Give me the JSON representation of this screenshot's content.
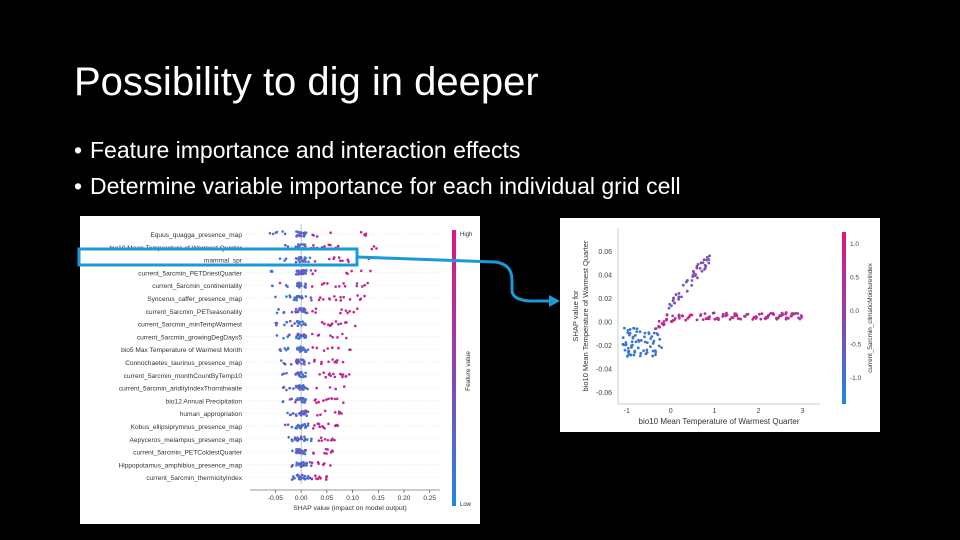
{
  "slide": {
    "title": "Possibility to dig in deeper",
    "bullets": [
      "Feature importance and interaction effects",
      "Determine variable importance for each individual grid cell"
    ]
  },
  "colors": {
    "background": "#000000",
    "text": "#ffffff",
    "highlight": "#1a9ad6",
    "low": "#1e88e5",
    "high": "#e0157f"
  },
  "chart_data": [
    {
      "type": "scatter",
      "subtype": "shap-summary-beeswarm",
      "features": [
        "Equus_quagga_presence_map",
        "bio10 Mean Temperature of Warmest Quarter",
        "mammal_spr",
        "current_5arcmin_PETDriestQuarter",
        "current_5arcmin_continentality",
        "Syncerus_caffer_presence_map",
        "current_5arcmin_PETseasonality",
        "current_5arcmin_minTempWarmest",
        "current_5arcmin_growingDegDays5",
        "bio5 Max Temperature of Warmest Month",
        "Connochaetes_taurinus_presence_map",
        "current_5arcmin_monthCountByTemp10",
        "current_5arcmin_aridityIndexThornthwaite",
        "bio12 Annual Precipitation",
        "human_appropriation",
        "Kobus_ellipsiprymnus_presence_map",
        "Aepyceros_melampus_presence_map",
        "current_5arcmin_PETColdestQuarter",
        "Hippopotamus_amphibius_presence_map",
        "current_5arcmin_thermicityIndex"
      ],
      "xlabel": "SHAP value (impact on model output)",
      "xticks": [
        "-0.05",
        "0.00",
        "0.05",
        "0.10",
        "0.15",
        "0.20",
        "0.25"
      ],
      "xlim": [
        -0.08,
        0.27
      ],
      "colorbar": {
        "label": "Feature value",
        "high": "High",
        "low": "Low"
      },
      "highlighted_feature": "bio10 Mean Temperature of Warmest Quarter"
    },
    {
      "type": "scatter",
      "subtype": "shap-dependence",
      "xlabel": "bio10 Mean Temperature of Warmest Quarter",
      "ylabel": "SHAP value for\nbio10 Mean Temperature of Warmest Quarter",
      "xticks": [
        "-1",
        "0",
        "1",
        "2",
        "3"
      ],
      "yticks": [
        "0.06",
        "0.04",
        "0.02",
        "0.00",
        "-0.02",
        "-0.04",
        "-0.06"
      ],
      "xlim": [
        -1.2,
        3.4
      ],
      "ylim": [
        -0.07,
        0.08
      ],
      "colorbar": {
        "label": "current_5arcmin_climaticMoistureIndex",
        "ticks": [
          "1.0",
          "0.5",
          "0.0",
          "-0.5",
          "-1.0"
        ]
      }
    }
  ]
}
